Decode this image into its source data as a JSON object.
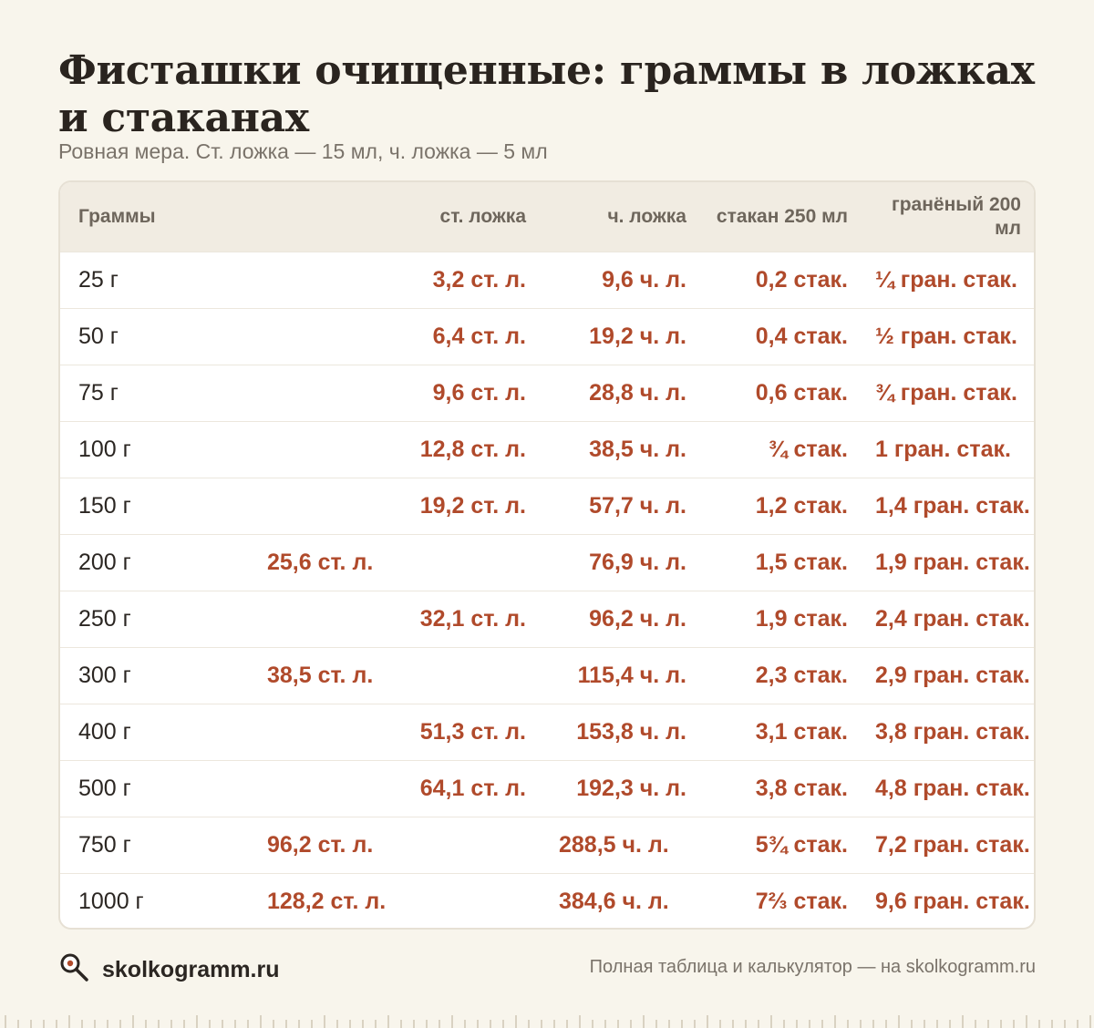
{
  "title": "Фисташки очищенные: граммы в ложках и стаканах",
  "subtitle": "Ровная мера. Ст. ложка — 15 мл, ч. ложка — 5 мл",
  "table": {
    "headers": [
      "Граммы",
      "ст. ложка",
      "ч. ложка",
      "стакан 250 мл",
      "гранёный 200 мл"
    ],
    "rows": [
      [
        "25 г",
        "3,2 ст. л.",
        "9,6 ч. л.",
        "0,2 стак.",
        "¼ гран. стак."
      ],
      [
        "50 г",
        "6,4 ст. л.",
        "19,2 ч. л.",
        "0,4 стак.",
        "½ гран. стак."
      ],
      [
        "75 г",
        "9,6 ст. л.",
        "28,8 ч. л.",
        "0,6 стак.",
        "¾ гран. стак."
      ],
      [
        "100 г",
        "12,8 ст. л.",
        "38,5 ч. л.",
        "¾ стак.",
        "1 гран. стак."
      ],
      [
        "150 г",
        "19,2 ст. л.",
        "57,7 ч. л.",
        "1,2 стак.",
        "1,4 гран. стак."
      ],
      [
        "200 г",
        "25,6 ст. л.",
        "76,9 ч. л.",
        "1,5 стак.",
        "1,9 гран. стак."
      ],
      [
        "250 г",
        "32,1 ст. л.",
        "96,2 ч. л.",
        "1,9 стак.",
        "2,4 гран. стак."
      ],
      [
        "300 г",
        "38,5 ст. л.",
        "115,4 ч. л.",
        "2,3 стак.",
        "2,9 гран. стак."
      ],
      [
        "400 г",
        "51,3 ст. л.",
        "153,8 ч. л.",
        "3,1 стак.",
        "3,8 гран. стак."
      ],
      [
        "500 г",
        "64,1 ст. л.",
        "192,3 ч. л.",
        "3,8 стак.",
        "4,8 гран. стак."
      ],
      [
        "750 г",
        "96,2 ст. л.",
        "288,5 ч. л.",
        "5¾ стак.",
        "7,2 гран. стак."
      ],
      [
        "1000 г",
        "128,2 ст. л.",
        "384,6 ч. л.",
        "7⅔ стак.",
        "9,6 гран. стак."
      ]
    ]
  },
  "footer": {
    "brand_icon": "magnifier-icon",
    "brand": "skolkogramm.ru",
    "note": "Полная таблица и калькулятор — на skolkogramm.ru"
  },
  "colors": {
    "background": "#f8f5ec",
    "accent": "#b04a2b",
    "header_row": "#f1ece2",
    "muted_text": "#7a736a"
  }
}
